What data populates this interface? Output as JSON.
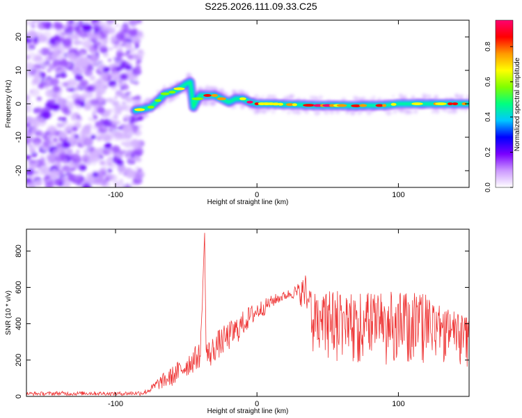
{
  "title": "S225.2026.111.09.33.C25",
  "chart_data": [
    {
      "type": "heatmap",
      "xlabel": "Height of straight line (km)",
      "ylabel": "Frequency (Hz)",
      "xlim": [
        -163,
        150
      ],
      "ylim": [
        -25,
        25
      ],
      "xticks": [
        -100,
        0,
        100
      ],
      "xtick_labels": [
        "-100",
        "0",
        "100"
      ],
      "yticks": [
        20,
        10,
        0,
        -10,
        -20
      ],
      "ytick_labels": [
        "20",
        "10",
        "0",
        "-10",
        "-20"
      ],
      "noise_region_x": [
        -163,
        -85
      ],
      "ridge": {
        "x": [
          -86,
          -80,
          -75,
          -70,
          -65,
          -60,
          -55,
          -50,
          -47,
          -45,
          -42,
          -40,
          -35,
          -30,
          -25,
          -20,
          -15,
          -10,
          -5,
          0,
          10,
          20,
          30,
          40,
          50,
          60,
          70,
          75,
          80,
          90,
          100,
          110,
          120,
          130,
          140,
          150
        ],
        "y": [
          -2,
          -1.5,
          -1,
          1,
          3,
          3.5,
          4.5,
          6,
          6.5,
          -1,
          1.5,
          2.5,
          2.5,
          2.5,
          1.5,
          0.5,
          1.5,
          1.5,
          0.5,
          0,
          0,
          -0.2,
          -0.3,
          -0.5,
          -0.5,
          -0.5,
          -0.6,
          -0.5,
          -0.5,
          -0.5,
          0,
          0,
          0,
          0,
          0,
          0
        ]
      },
      "colorbar": {
        "label": "Normalized spectral amplitude",
        "range": [
          0.0,
          0.95
        ],
        "ticks": [
          0.0,
          0.2,
          0.4,
          0.6,
          0.8
        ],
        "tick_labels": [
          "0.0",
          "0.2",
          "0.4",
          "0.6",
          "0.8"
        ],
        "colors": [
          "#ffffff",
          "#cc99ff",
          "#7a00ff",
          "#0000ff",
          "#00c8ff",
          "#00ff80",
          "#80ff00",
          "#ffff00",
          "#ff9900",
          "#ff0000",
          "#ff0070"
        ]
      }
    },
    {
      "type": "line",
      "xlabel": "Height of straight line (km)",
      "ylabel": "SNR (10 * v/v)",
      "xlim": [
        -163,
        150
      ],
      "ylim": [
        0,
        920
      ],
      "xticks": [
        -100,
        0,
        100
      ],
      "xtick_labels": [
        "-100",
        "0",
        "100"
      ],
      "yticks": [
        0,
        200,
        400,
        600,
        800
      ],
      "ytick_labels": [
        "0",
        "200",
        "400",
        "600",
        "800"
      ],
      "color": "#ee3333",
      "series": [
        {
          "x": [
            -163,
            -150,
            -140,
            -130,
            -120,
            -110,
            -100,
            -90,
            -85,
            -80,
            -75,
            -70,
            -65,
            -60,
            -55,
            -50,
            -45,
            -40,
            -37,
            -36,
            -35,
            -32,
            -30,
            -25,
            -20,
            -15,
            -10,
            -5,
            0,
            5,
            10,
            15,
            20,
            25,
            30,
            35,
            40,
            50,
            60,
            70,
            80,
            90,
            100,
            110,
            120,
            125,
            130,
            140,
            150
          ],
          "y": [
            15,
            15,
            17,
            15,
            18,
            16,
            15,
            17,
            18,
            20,
            40,
            70,
            90,
            110,
            140,
            170,
            200,
            230,
            900,
            260,
            230,
            240,
            270,
            300,
            330,
            360,
            400,
            440,
            470,
            490,
            520,
            540,
            555,
            570,
            570,
            570,
            555,
            560,
            555,
            560,
            565,
            555,
            560,
            555,
            540,
            500,
            470,
            440,
            420
          ],
          "spread": [
            10,
            10,
            12,
            10,
            12,
            10,
            10,
            12,
            12,
            15,
            20,
            35,
            45,
            55,
            60,
            65,
            70,
            70,
            0,
            80,
            80,
            80,
            80,
            80,
            80,
            80,
            70,
            60,
            55,
            45,
            35,
            30,
            25,
            30,
            60,
            120,
            200,
            230,
            240,
            240,
            230,
            230,
            220,
            230,
            220,
            200,
            180,
            170,
            160
          ]
        }
      ]
    }
  ]
}
